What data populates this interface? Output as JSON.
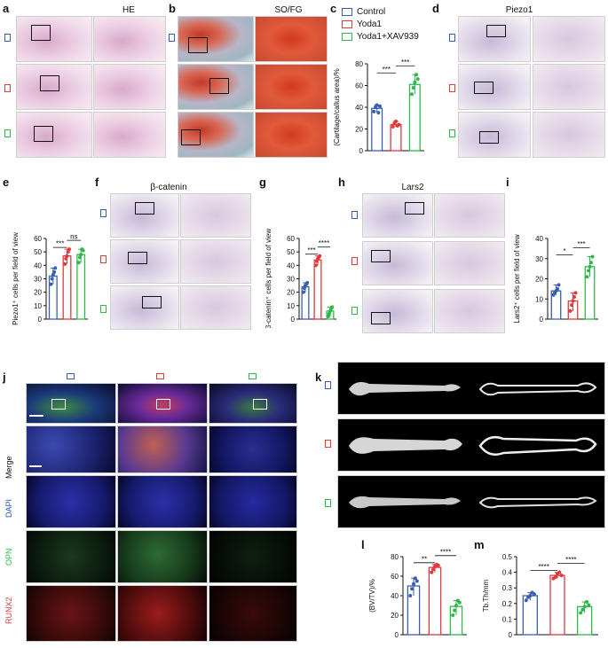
{
  "panels": {
    "a": {
      "letter": "a",
      "title": "HE"
    },
    "b": {
      "letter": "b",
      "title": "SO/FG"
    },
    "c": {
      "letter": "c"
    },
    "d": {
      "letter": "d",
      "title": "Piezo1"
    },
    "e": {
      "letter": "e"
    },
    "f": {
      "letter": "f",
      "title": "β-catenin"
    },
    "g": {
      "letter": "g"
    },
    "h": {
      "letter": "h",
      "title": "Lars2"
    },
    "i": {
      "letter": "i"
    },
    "j": {
      "letter": "j",
      "rows": [
        "Merge",
        "DAPI",
        "OPN",
        "RUNX2"
      ]
    },
    "k": {
      "letter": "k"
    },
    "l": {
      "letter": "l"
    },
    "m": {
      "letter": "m"
    }
  },
  "legend": {
    "items": [
      {
        "label": "Control",
        "color": "#3a5fb0"
      },
      {
        "label": "Yoda1",
        "color": "#e03a3a"
      },
      {
        "label": "Yoda1+XAV939",
        "color": "#2eb84a"
      }
    ]
  },
  "colors": {
    "control": "#3a5fb0",
    "yoda1": "#e03a3a",
    "xav": "#2eb84a",
    "merge_text": "#111111",
    "dapi_text": "#2a55c8",
    "opn_text": "#2eb84a",
    "runx2_text": "#e03a3a"
  },
  "chart_data": [
    {
      "id": "c",
      "type": "bar",
      "categories": [
        "Control",
        "Yoda1",
        "Yoda1+XAV939"
      ],
      "values": [
        39,
        24,
        61
      ],
      "ylabel": "(Cartilage/callus area)/%",
      "ylim": [
        0,
        80
      ],
      "yticks": [
        "0",
        "20",
        "40",
        "60",
        "80"
      ],
      "points": [
        [
          36,
          40,
          42,
          35,
          41
        ],
        [
          22,
          25,
          27,
          23,
          24
        ],
        [
          52,
          58,
          63,
          70,
          66
        ]
      ],
      "sig": [
        "***",
        "***"
      ]
    },
    {
      "id": "e",
      "type": "bar",
      "categories": [
        "Control",
        "Yoda1",
        "Yoda1+XAV939"
      ],
      "values": [
        32,
        47,
        48
      ],
      "ylabel": "Piezo1⁺ cells per field of view",
      "ylim": [
        0,
        60
      ],
      "yticks": [
        "0",
        "10",
        "20",
        "30",
        "40",
        "50",
        "60"
      ],
      "points": [
        [
          26,
          30,
          33,
          35,
          38
        ],
        [
          41,
          45,
          47,
          50,
          52
        ],
        [
          42,
          46,
          48,
          52,
          51
        ]
      ],
      "sig": [
        "***",
        "ns"
      ]
    },
    {
      "id": "g",
      "type": "bar",
      "categories": [
        "Control",
        "Yoda1",
        "Yoda1+XAV939"
      ],
      "values": [
        24,
        44,
        6
      ],
      "ylabel": "β-catenin⁺ cells per field of view",
      "ylim": [
        0,
        60
      ],
      "yticks": [
        "0",
        "10",
        "20",
        "30",
        "40",
        "50",
        "60"
      ],
      "points": [
        [
          20,
          23,
          25,
          26,
          27
        ],
        [
          40,
          43,
          45,
          46,
          47
        ],
        [
          2,
          4,
          6,
          8,
          9
        ]
      ],
      "sig": [
        "***",
        "****"
      ]
    },
    {
      "id": "i",
      "type": "bar",
      "categories": [
        "Control",
        "Yoda1",
        "Yoda1+XAV939"
      ],
      "values": [
        14,
        9,
        26
      ],
      "ylabel": "Lars2⁺ cells per field of view",
      "ylim": [
        0,
        40
      ],
      "yticks": [
        "0",
        "10",
        "20",
        "30",
        "40"
      ],
      "points": [
        [
          12,
          13,
          14,
          15,
          17
        ],
        [
          4,
          7,
          9,
          11,
          13
        ],
        [
          21,
          24,
          26,
          28,
          31
        ]
      ],
      "sig": [
        "*",
        "***"
      ]
    },
    {
      "id": "l",
      "type": "bar",
      "categories": [
        "Control",
        "Yoda1",
        "Yoda1+XAV939"
      ],
      "values": [
        50,
        69,
        29
      ],
      "ylabel": "(BV/TV)/%",
      "ylim": [
        0,
        80
      ],
      "yticks": [
        "0",
        "20",
        "40",
        "60",
        "80"
      ],
      "points": [
        [
          40,
          47,
          52,
          58,
          55
        ],
        [
          64,
          67,
          70,
          72,
          71
        ],
        [
          20,
          25,
          30,
          35,
          33
        ]
      ],
      "sig": [
        "**",
        "****"
      ]
    },
    {
      "id": "m",
      "type": "bar",
      "categories": [
        "Control",
        "Yoda1",
        "Yoda1+XAV939"
      ],
      "values": [
        0.25,
        0.38,
        0.18
      ],
      "ylabel": "Tb.Th/mm",
      "ylim": [
        0,
        0.5
      ],
      "yticks": [
        "0",
        "0.1",
        "0.2",
        "0.3",
        "0.4",
        "0.5"
      ],
      "points": [
        [
          0.22,
          0.24,
          0.25,
          0.27,
          0.26
        ],
        [
          0.36,
          0.37,
          0.39,
          0.4,
          0.38
        ],
        [
          0.14,
          0.16,
          0.18,
          0.21,
          0.19
        ]
      ],
      "sig": [
        "****",
        "****"
      ]
    }
  ]
}
